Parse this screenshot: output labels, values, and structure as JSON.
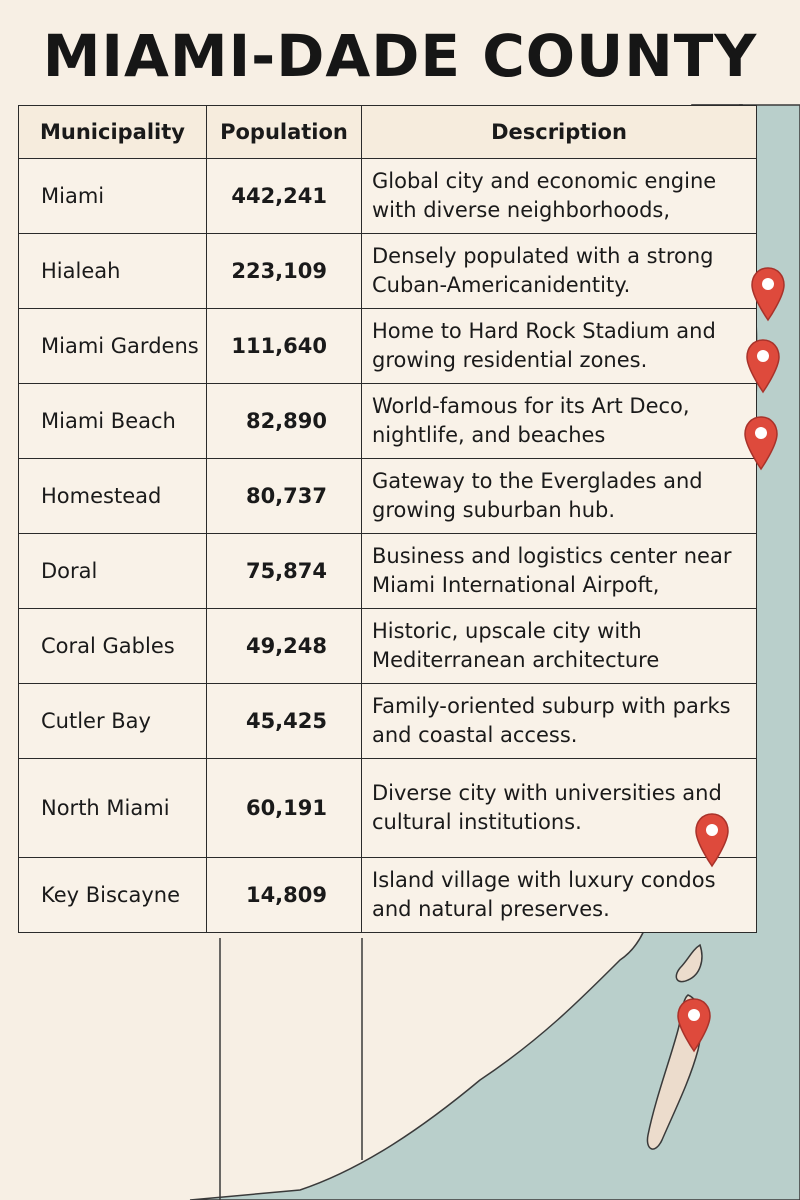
{
  "title": "MIAMI-DADE COUNTY",
  "table": {
    "headers": [
      "Municipality",
      "Population",
      "Description"
    ],
    "rows": [
      {
        "municipality": "Miami",
        "population": "442,241",
        "description": "Global city and economic engine with diverse neighborhoods,"
      },
      {
        "municipality": "Hialeah",
        "population": "223,109",
        "description": "Densely populated with a strong Cuban-Americanidentity."
      },
      {
        "municipality": "Miami Gardens",
        "population": "111,640",
        "description": "Home to Hard Rock Stadium and growing residential zones."
      },
      {
        "municipality": "Miami Beach",
        "population": "82,890",
        "description": "World-famous for its Art Deco, nightlife, and beaches"
      },
      {
        "municipality": "Homestead",
        "population": "80,737",
        "description": "Gateway to the Everglades and growing suburban hub."
      },
      {
        "municipality": "Doral",
        "population": "75,874",
        "description": "Business and logistics center near Miami International Airpoft,"
      },
      {
        "municipality": "Coral Gables",
        "population": "49,248",
        "description": "Historic, upscale city with Mediterranean architecture"
      },
      {
        "municipality": "Cutler Bay",
        "population": "45,425",
        "description": "Family-oriented suburp with parks and coastal access."
      },
      {
        "municipality": "North Miami",
        "population": "60,191",
        "description": "Diverse city with universities and cultural institutions."
      },
      {
        "municipality": "Key Biscayne",
        "population": "14,809",
        "description": "Island village with luxury condos and natural preserves."
      }
    ]
  },
  "map": {
    "colors": {
      "water": "#b9cfcb",
      "land": "#f7efe4",
      "island_land": "#ecdccc",
      "land_outline": "#3a3a3a",
      "marker": "#de4a3c"
    },
    "markers": [
      "location-pin",
      "location-pin",
      "location-pin",
      "location-pin",
      "location-pin"
    ]
  }
}
